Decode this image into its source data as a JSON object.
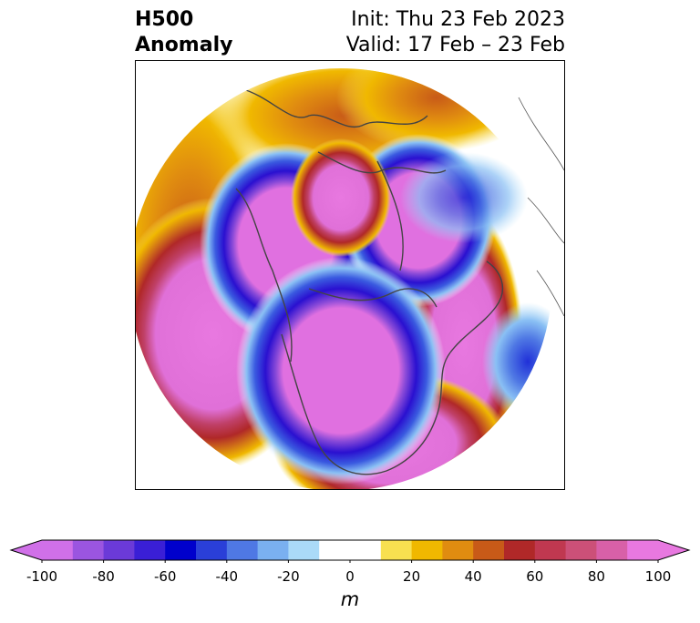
{
  "title": {
    "left_line1": "H500",
    "left_line2": "Anomaly",
    "right_line1": "Init: Thu 23 Feb 2023",
    "right_line2": "Valid: 17 Feb – 23 Feb"
  },
  "map": {
    "projection": "north-polar-stereographic",
    "field": "500 hPa geopotential height anomaly",
    "features": [
      {
        "name": "anomaly-low-north-pacific",
        "sign": "negative",
        "value_m": -100
      },
      {
        "name": "anomaly-low-north-america",
        "sign": "negative",
        "value_m": -100
      },
      {
        "name": "anomaly-low-greenland",
        "sign": "negative",
        "value_m": -100
      },
      {
        "name": "anomaly-low-siberia",
        "sign": "negative",
        "value_m": -100
      },
      {
        "name": "anomaly-low-central-asia",
        "sign": "negative",
        "value_m": -100
      },
      {
        "name": "anomaly-high-atlantic",
        "sign": "positive",
        "value_m": 100
      },
      {
        "name": "anomaly-high-eastern-us",
        "sign": "positive",
        "value_m": 100
      },
      {
        "name": "anomaly-high-europe",
        "sign": "positive",
        "value_m": 50
      }
    ]
  },
  "colorbar": {
    "unit_label": "m",
    "ticks": [
      "-100",
      "-80",
      "-60",
      "-40",
      "-20",
      "0",
      "20",
      "40",
      "60",
      "80",
      "100"
    ],
    "bounds": [
      -100,
      100
    ],
    "step": 10,
    "colors": [
      "#d070e8",
      "#9b55e0",
      "#6b3ad8",
      "#3a1fd6",
      "#0000cc",
      "#2a3fd8",
      "#4f78e4",
      "#7ab0f0",
      "#aadaf8",
      "#ffffff",
      "#ffffff",
      "#f8e050",
      "#f0b800",
      "#e08c10",
      "#c85a18",
      "#b02828",
      "#c03850",
      "#cc5078",
      "#d860a8",
      "#e878e0"
    ]
  }
}
